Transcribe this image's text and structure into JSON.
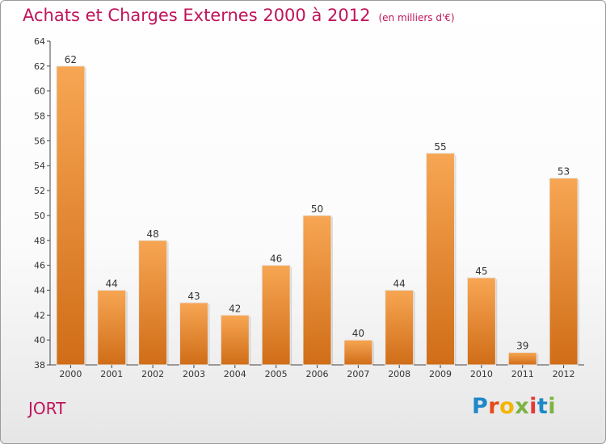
{
  "header": {
    "title": "Achats et Charges Externes 2000 à 2012",
    "subtitle": "(en milliers d'€)"
  },
  "footer": {
    "commune": "JORT",
    "logo_letters": [
      "P",
      "r",
      "o",
      "x",
      "i",
      "t",
      "i"
    ]
  },
  "colors": {
    "title": "#c0145a",
    "bar_light": "#f7a653",
    "bar_dark": "#d06d18",
    "logo": [
      "#1e88c8",
      "#e64a19",
      "#f4b400",
      "#7cb342",
      "#e53935",
      "#1e88c8",
      "#7cb342"
    ]
  },
  "chart_data": {
    "type": "bar",
    "categories": [
      "2000",
      "2001",
      "2002",
      "2003",
      "2004",
      "2005",
      "2006",
      "2007",
      "2008",
      "2009",
      "2010",
      "2011",
      "2012"
    ],
    "values": [
      62,
      44,
      48,
      43,
      42,
      46,
      50,
      40,
      44,
      55,
      45,
      39,
      53
    ],
    "ylim": [
      38,
      64
    ],
    "yticks": [
      38,
      40,
      42,
      44,
      46,
      48,
      50,
      52,
      54,
      56,
      58,
      60,
      62,
      64
    ],
    "grid": false,
    "legend": "none"
  }
}
